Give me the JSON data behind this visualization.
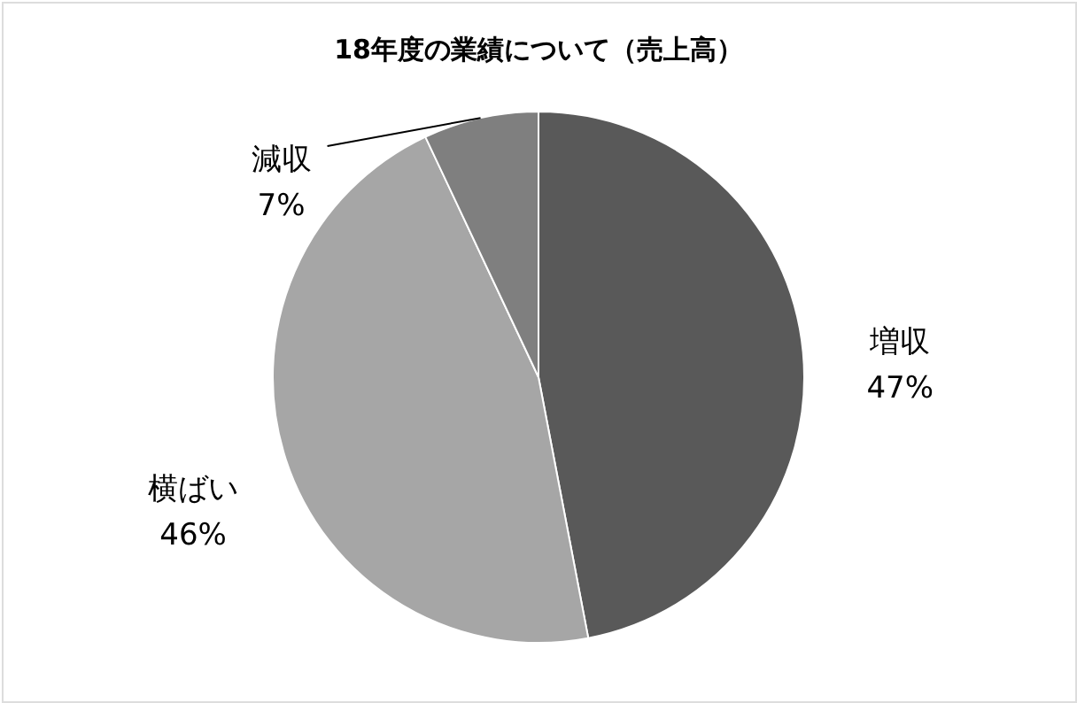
{
  "chart_data": {
    "type": "pie",
    "title": "18年度の業績について（売上高）",
    "categories": [
      "増収",
      "横ばい",
      "減収"
    ],
    "values": [
      47,
      46,
      7
    ],
    "colors": [
      "#595959",
      "#a6a6a6",
      "#7f7f7f"
    ],
    "value_labels": [
      "47%",
      "46%",
      "7%"
    ]
  }
}
